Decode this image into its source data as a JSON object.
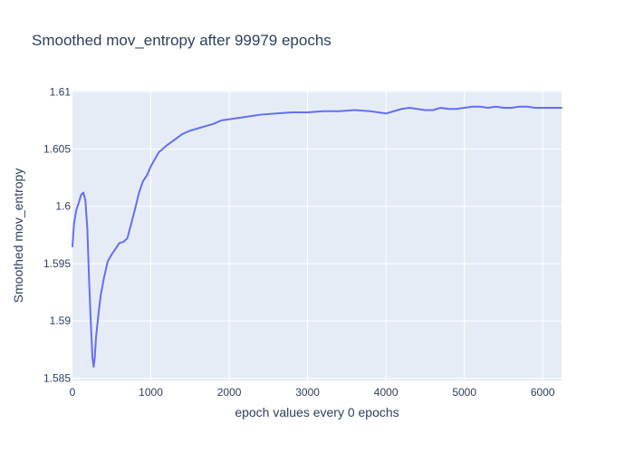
{
  "chart_data": {
    "type": "line",
    "title": "Smoothed mov_entropy after 99979 epochs",
    "xlabel": "epoch values every 0 epochs",
    "ylabel": "Smoothed mov_entropy",
    "xlim": [
      0,
      6240
    ],
    "ylim": [
      1.5848,
      1.6101
    ],
    "x_ticks": [
      {
        "value": 0,
        "label": "0"
      },
      {
        "value": 1000,
        "label": "1000"
      },
      {
        "value": 2000,
        "label": "2000"
      },
      {
        "value": 3000,
        "label": "3000"
      },
      {
        "value": 4000,
        "label": "4000"
      },
      {
        "value": 5000,
        "label": "5000"
      },
      {
        "value": 6000,
        "label": "6000"
      }
    ],
    "y_ticks": [
      {
        "value": 1.585,
        "label": "1.585"
      },
      {
        "value": 1.59,
        "label": "1.59"
      },
      {
        "value": 1.595,
        "label": "1.595"
      },
      {
        "value": 1.6,
        "label": "1.6"
      },
      {
        "value": 1.605,
        "label": "1.605"
      },
      {
        "value": 1.61,
        "label": "1.61"
      }
    ],
    "grid": true,
    "legend": "none",
    "colors": {
      "plot_background": "#e5ecf6",
      "grid": "#ffffff",
      "line": "#636efa",
      "text": "#2a3f5f"
    },
    "series": [
      {
        "x": [
          0,
          20,
          50,
          80,
          110,
          140,
          165,
          190,
          210,
          230,
          255,
          270,
          285,
          300,
          330,
          360,
          400,
          450,
          500,
          550,
          600,
          650,
          700,
          750,
          800,
          850,
          900,
          950,
          1000,
          1100,
          1200,
          1300,
          1400,
          1500,
          1600,
          1700,
          1800,
          1900,
          2000,
          2200,
          2400,
          2600,
          2800,
          3000,
          3200,
          3400,
          3600,
          3800,
          3900,
          4000,
          4100,
          4200,
          4300,
          4400,
          4500,
          4600,
          4700,
          4800,
          4900,
          5000,
          5100,
          5200,
          5300,
          5400,
          5500,
          5600,
          5700,
          5800,
          5900,
          6000,
          6100,
          6240
        ],
        "y": [
          1.5965,
          1.5985,
          1.5997,
          1.6003,
          1.601,
          1.6012,
          1.6005,
          1.598,
          1.594,
          1.5905,
          1.5868,
          1.586,
          1.5868,
          1.5885,
          1.5905,
          1.5922,
          1.5937,
          1.5952,
          1.5958,
          1.5963,
          1.5968,
          1.5969,
          1.5972,
          1.5985,
          1.5998,
          1.6012,
          1.6022,
          1.6027,
          1.6035,
          1.6047,
          1.6053,
          1.6058,
          1.6063,
          1.6066,
          1.6068,
          1.607,
          1.6072,
          1.6075,
          1.6076,
          1.6078,
          1.608,
          1.6081,
          1.6082,
          1.6082,
          1.6083,
          1.6083,
          1.6084,
          1.6083,
          1.6082,
          1.6081,
          1.6083,
          1.6085,
          1.6086,
          1.6085,
          1.6084,
          1.6084,
          1.6086,
          1.6085,
          1.6085,
          1.6086,
          1.6087,
          1.6087,
          1.6086,
          1.6087,
          1.6086,
          1.6086,
          1.6087,
          1.6087,
          1.6086,
          1.6086,
          1.6086,
          1.6086
        ]
      }
    ]
  }
}
